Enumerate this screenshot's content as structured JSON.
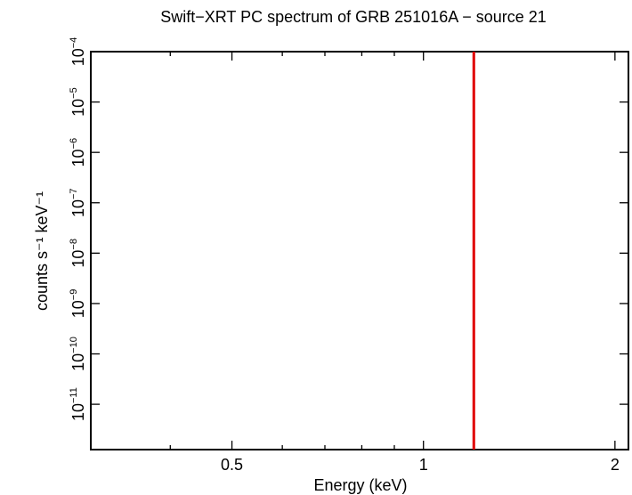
{
  "chart_data": {
    "type": "vline",
    "title": "Swift−XRT PC spectrum of GRB 251016A − source 21",
    "xlabel": "Energy (keV)",
    "ylabel": "counts s⁻¹ keV⁻¹",
    "xscale": "log",
    "yscale": "log",
    "xlim": [
      0.3,
      2.1
    ],
    "ylim": [
      1.26e-12,
      0.0001
    ],
    "xticks": [
      0.5,
      1,
      2
    ],
    "xminorticks": [
      0.4,
      0.6,
      0.7,
      0.8,
      0.9
    ],
    "yticks": [
      {
        "value": 0.0001,
        "label": "10",
        "exponent": "−4"
      },
      {
        "value": 1e-05,
        "label": "10",
        "exponent": "−5"
      },
      {
        "value": 1e-06,
        "label": "10",
        "exponent": "−6"
      },
      {
        "value": 1e-07,
        "label": "10",
        "exponent": "−7"
      },
      {
        "value": 1e-08,
        "label": "10",
        "exponent": "−8"
      },
      {
        "value": 1e-09,
        "label": "10",
        "exponent": "−9"
      },
      {
        "value": 1e-10,
        "label": "10",
        "exponent": "−10"
      },
      {
        "value": 1e-11,
        "label": "10",
        "exponent": "−11"
      }
    ],
    "x": [
      1.2
    ],
    "color": "#e00000"
  }
}
